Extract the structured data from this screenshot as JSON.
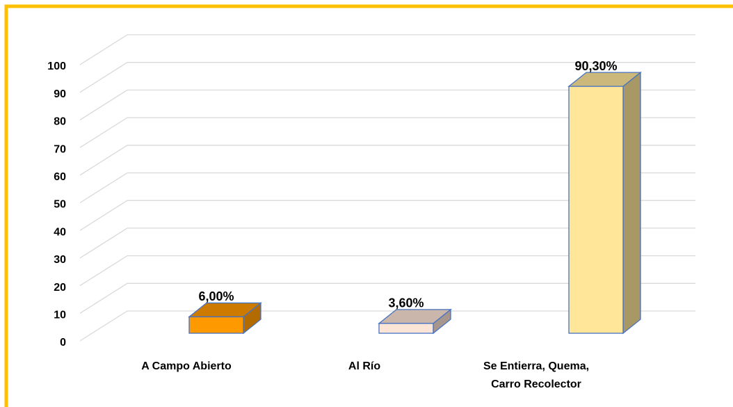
{
  "chart_data": {
    "type": "bar3d",
    "categories": [
      "A Campo Abierto",
      "Al Río",
      "Se Entierra, Quema, Carro Recolector"
    ],
    "values": [
      6.0,
      3.6,
      90.3
    ],
    "value_labels": [
      "6,00%",
      "3,60%",
      "90,30%"
    ],
    "colors": [
      "#FF9900",
      "#FCE4D6",
      "#FFE699"
    ],
    "ylim": [
      0,
      100
    ],
    "yticks": [
      0,
      10,
      20,
      30,
      40,
      50,
      60,
      70,
      80,
      90,
      100
    ],
    "grid": true
  }
}
